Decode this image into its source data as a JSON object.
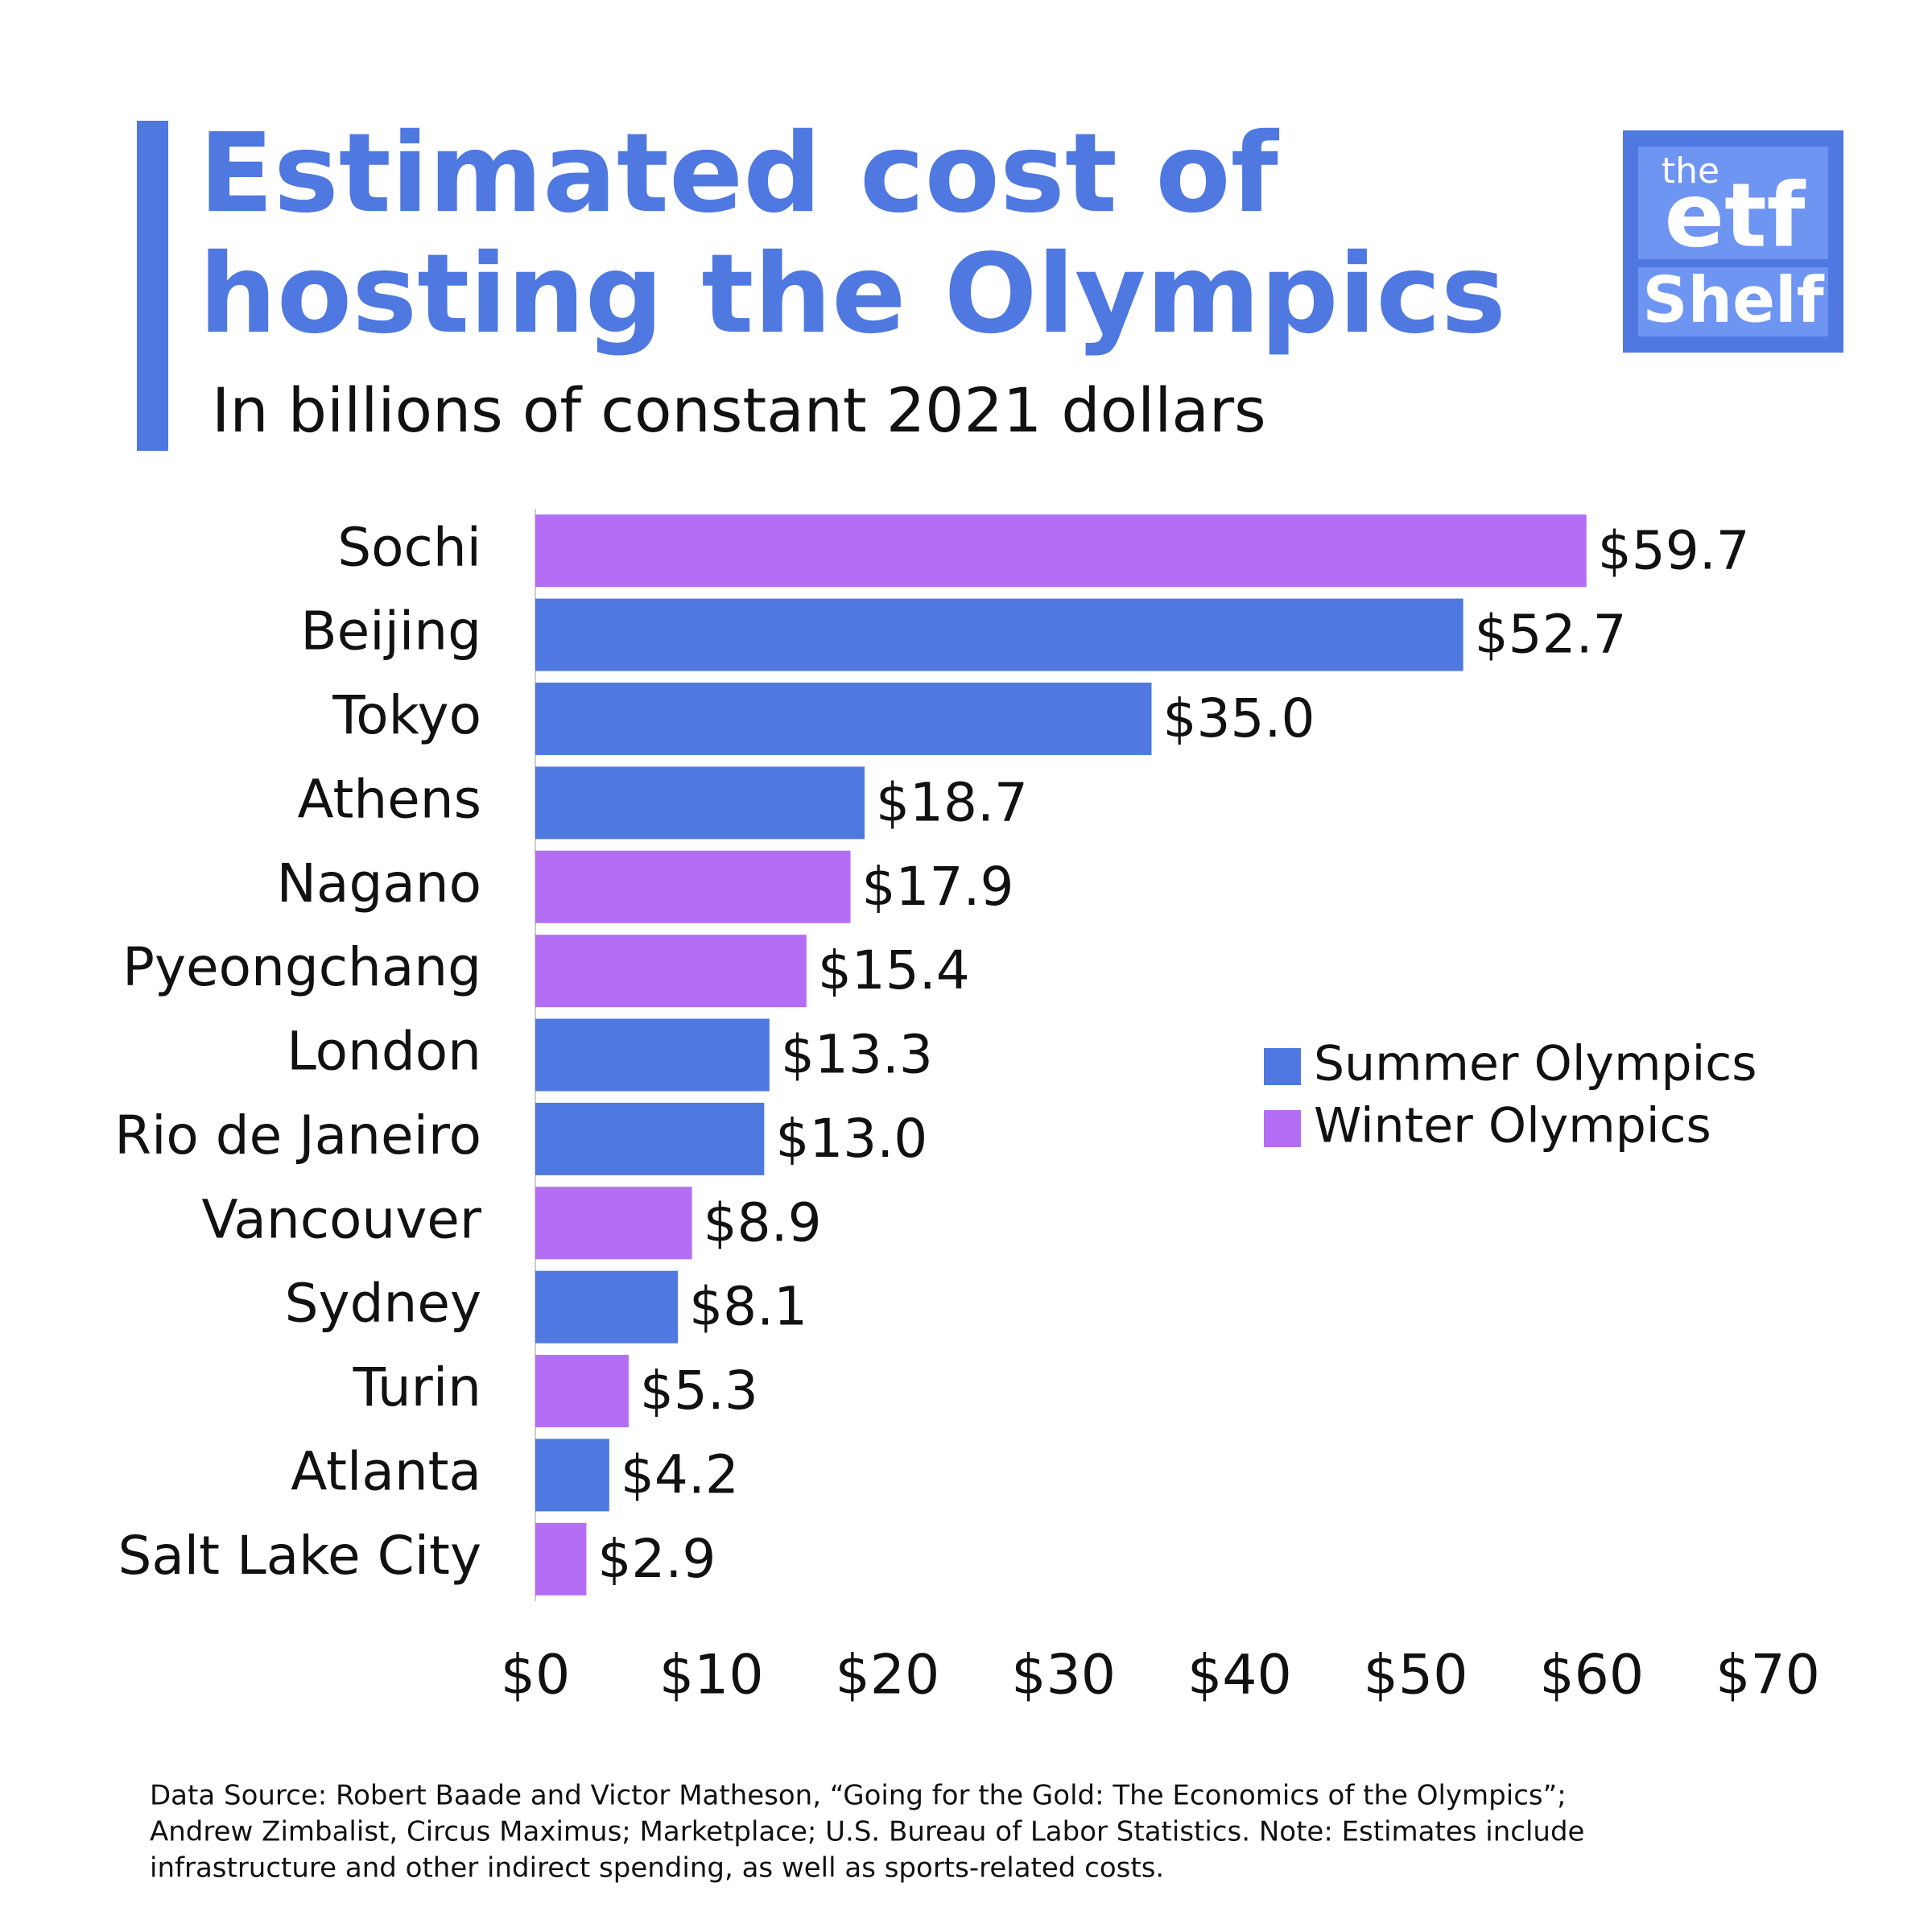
{
  "chart_data": {
    "type": "bar",
    "orientation": "horizontal",
    "title": [
      "Estimated cost of",
      "hosting the Olympics"
    ],
    "subtitle": "In billions of constant 2021 dollars",
    "categories": [
      "Sochi",
      "Beijing",
      "Tokyo",
      "Athens",
      "Nagano",
      "Pyeongchang",
      "London",
      "Rio de Janeiro",
      "Vancouver",
      "Sydney",
      "Turin",
      "Atlanta",
      "Salt Lake City"
    ],
    "series": [
      {
        "name": "Summer Olympics",
        "color": "#4f78e0",
        "values": [
          null,
          52.7,
          35.0,
          18.7,
          null,
          null,
          13.3,
          13.0,
          null,
          8.1,
          null,
          4.2,
          null
        ],
        "value_labels": [
          null,
          "$52.7",
          "$35.0",
          "$18.7",
          null,
          null,
          "$13.3",
          "$13.0",
          null,
          "$8.1",
          null,
          "$4.2",
          null
        ]
      },
      {
        "name": "Winter Olympics",
        "color": "#b46ef5",
        "values": [
          59.7,
          null,
          null,
          null,
          17.9,
          15.4,
          null,
          null,
          8.9,
          null,
          5.3,
          null,
          2.9
        ],
        "value_labels": [
          "$59.7",
          null,
          null,
          null,
          "$17.9",
          "$15.4",
          null,
          null,
          "$8.9",
          null,
          "$5.3",
          null,
          "$2.9"
        ]
      }
    ],
    "xlim": [
      0,
      70
    ],
    "xticks": [
      {
        "value": 0,
        "label": "$0"
      },
      {
        "value": 10,
        "label": "$10"
      },
      {
        "value": 20,
        "label": "$20"
      },
      {
        "value": 30,
        "label": "$30"
      },
      {
        "value": 40,
        "label": "$40"
      },
      {
        "value": 50,
        "label": "$50"
      },
      {
        "value": 60,
        "label": "$60"
      },
      {
        "value": 70,
        "label": "$70"
      }
    ],
    "grid": false,
    "legend": "right",
    "footnote": [
      "Data Source: Robert Baade and Victor Matheson, “Going for the Gold: The Economics of the Olympics”;",
      "Andrew Zimbalist, Circus Maximus; Marketplace; U.S. Bureau of Labor Statistics. Note: Estimates include",
      "infrastructure and other indirect spending, as well as sports-related costs."
    ]
  },
  "logo": {
    "top": "the",
    "middle": "etf",
    "bottom": "Shelf"
  }
}
